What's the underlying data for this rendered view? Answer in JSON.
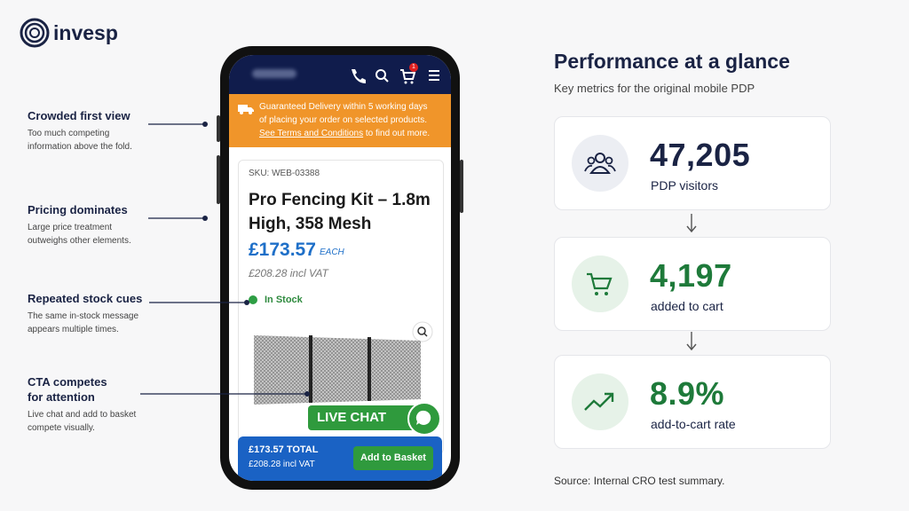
{
  "logo": "invesp",
  "annotations": [
    {
      "title": [
        "Crowded first view"
      ],
      "text": [
        "Too much competing",
        "information above the fold."
      ]
    },
    {
      "title": [
        "Pricing dominates"
      ],
      "text": [
        "Large price treatment",
        "outweighs other elements."
      ]
    },
    {
      "title": [
        "Repeated stock cues"
      ],
      "text": [
        "The same in-stock message",
        "appears multiple times."
      ]
    },
    {
      "title": [
        "CTA competes",
        "for attention"
      ],
      "text": [
        "Live chat and add to basket",
        "compete visually."
      ]
    }
  ],
  "phone": {
    "cart_badge": "1",
    "banner": {
      "lines": [
        "Guaranteed Delivery within 5 working days",
        "of placing your order on selected products."
      ],
      "link": "See Terms and Conditions",
      "after_link": "to find out more."
    },
    "sku": "SKU: WEB-03388",
    "product_title": [
      "Pro Fencing Kit – 1.8m",
      "High, 358 Mesh"
    ],
    "price": "£173.57",
    "price_unit": "EACH",
    "price_vat": "£208.28 incl VAT",
    "stock": "In Stock",
    "live_chat": "LIVE CHAT",
    "footer": {
      "total": "£173.57 TOTAL",
      "vat": "£208.28 incl VAT",
      "button": "Add to Basket"
    }
  },
  "panel": {
    "title": "Performance at a glance",
    "subtitle": "Key metrics for the original mobile PDP",
    "metrics": [
      {
        "value": "47,205",
        "label": "PDP visitors"
      },
      {
        "value": "4,197",
        "label": "added to cart"
      },
      {
        "value": "8.9%",
        "label": "add-to-cart rate"
      }
    ],
    "source": "Source: Internal CRO test summary."
  }
}
